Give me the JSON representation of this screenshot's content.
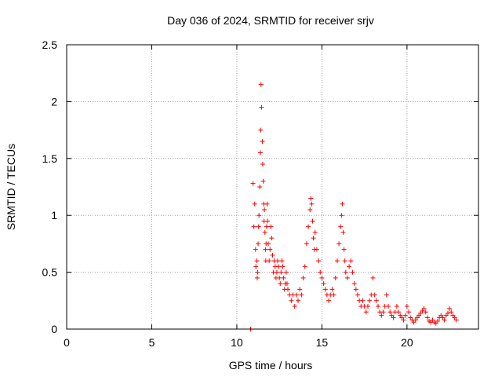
{
  "chart_data": {
    "type": "scatter",
    "title": "Day 036 of 2024, SRMTID for receiver srjv",
    "xlabel": "GPS time / hours",
    "ylabel": "SRMTID / TECUs",
    "xlim": [
      0,
      24.2
    ],
    "ylim": [
      0,
      2.5
    ],
    "xticks": [
      0,
      5,
      10,
      15,
      20
    ],
    "xtick_labels": [
      "0",
      "5",
      "10",
      "15",
      "20"
    ],
    "yticks": [
      0,
      0.5,
      1,
      1.5,
      2,
      2.5
    ],
    "ytick_labels": [
      "0",
      "0.5",
      "1",
      "1.5",
      "2",
      "2.5"
    ],
    "grid": true,
    "marker": "+",
    "marker_color": "#ff0000",
    "series": [
      {
        "name": "srjv",
        "x": [
          10.8,
          10.82,
          10.95,
          11.0,
          11.05,
          11.1,
          11.12,
          11.18,
          11.2,
          11.22,
          11.25,
          11.28,
          11.3,
          11.35,
          11.38,
          11.4,
          11.42,
          11.45,
          11.5,
          11.52,
          11.55,
          11.58,
          11.6,
          11.62,
          11.65,
          11.68,
          11.7,
          11.72,
          11.75,
          11.78,
          11.8,
          11.85,
          11.9,
          11.95,
          12.0,
          12.05,
          12.1,
          12.15,
          12.2,
          12.25,
          12.3,
          12.35,
          12.4,
          12.45,
          12.5,
          12.55,
          12.6,
          12.65,
          12.7,
          12.75,
          12.8,
          12.85,
          12.9,
          12.95,
          13.0,
          13.1,
          13.2,
          13.3,
          13.4,
          13.5,
          13.6,
          13.7,
          13.8,
          13.9,
          14.0,
          14.1,
          14.2,
          14.3,
          14.35,
          14.4,
          14.45,
          14.5,
          14.55,
          14.6,
          14.7,
          14.8,
          14.9,
          15.0,
          15.1,
          15.2,
          15.3,
          15.4,
          15.5,
          15.6,
          15.7,
          15.8,
          15.9,
          16.0,
          16.1,
          16.15,
          16.2,
          16.25,
          16.3,
          16.35,
          16.4,
          16.5,
          16.6,
          16.7,
          16.8,
          16.9,
          17.0,
          17.1,
          17.2,
          17.3,
          17.4,
          17.5,
          17.6,
          17.7,
          17.8,
          17.9,
          18.0,
          18.1,
          18.2,
          18.3,
          18.4,
          18.5,
          18.6,
          18.7,
          18.8,
          18.9,
          19.0,
          19.1,
          19.2,
          19.3,
          19.4,
          19.5,
          19.6,
          19.7,
          19.8,
          19.9,
          20.0,
          20.1,
          20.2,
          20.3,
          20.4,
          20.5,
          20.6,
          20.7,
          20.8,
          20.9,
          21.0,
          21.1,
          21.2,
          21.3,
          21.4,
          21.5,
          21.6,
          21.7,
          21.8,
          21.9,
          22.0,
          22.1,
          22.2,
          22.3,
          22.4,
          22.5,
          22.6,
          22.7,
          22.8,
          22.9
        ],
        "y": [
          0.0,
          0.0,
          1.28,
          0.9,
          1.1,
          0.7,
          0.55,
          0.6,
          0.45,
          0.5,
          0.75,
          0.9,
          1.0,
          1.25,
          1.55,
          1.75,
          2.15,
          1.95,
          1.65,
          1.45,
          1.3,
          1.1,
          0.95,
          1.05,
          0.85,
          0.7,
          0.6,
          0.75,
          0.9,
          1.1,
          0.95,
          0.75,
          0.6,
          0.7,
          0.9,
          0.8,
          0.65,
          0.5,
          0.6,
          0.55,
          0.45,
          0.5,
          0.6,
          0.55,
          0.45,
          0.4,
          0.5,
          0.6,
          0.55,
          0.45,
          0.35,
          0.4,
          0.5,
          0.4,
          0.35,
          0.3,
          0.25,
          0.3,
          0.2,
          0.3,
          0.25,
          0.35,
          0.3,
          0.45,
          0.55,
          0.75,
          0.9,
          1.05,
          1.15,
          1.1,
          0.95,
          0.8,
          0.7,
          0.85,
          0.7,
          0.6,
          0.5,
          0.45,
          0.4,
          0.35,
          0.3,
          0.25,
          0.3,
          0.35,
          0.3,
          0.45,
          0.6,
          0.75,
          0.9,
          1.0,
          1.1,
          0.85,
          0.7,
          0.6,
          0.5,
          0.45,
          0.55,
          0.6,
          0.5,
          0.4,
          0.35,
          0.3,
          0.25,
          0.2,
          0.25,
          0.2,
          0.15,
          0.2,
          0.25,
          0.3,
          0.45,
          0.3,
          0.25,
          0.2,
          0.15,
          0.12,
          0.15,
          0.2,
          0.3,
          0.2,
          0.15,
          0.12,
          0.1,
          0.15,
          0.2,
          0.15,
          0.12,
          0.1,
          0.08,
          0.12,
          0.2,
          0.15,
          0.1,
          0.08,
          0.06,
          0.08,
          0.1,
          0.12,
          0.14,
          0.16,
          0.18,
          0.15,
          0.1,
          0.07,
          0.06,
          0.08,
          0.06,
          0.05,
          0.07,
          0.1,
          0.12,
          0.1,
          0.08,
          0.12,
          0.14,
          0.18,
          0.15,
          0.12,
          0.1,
          0.08
        ]
      }
    ]
  }
}
